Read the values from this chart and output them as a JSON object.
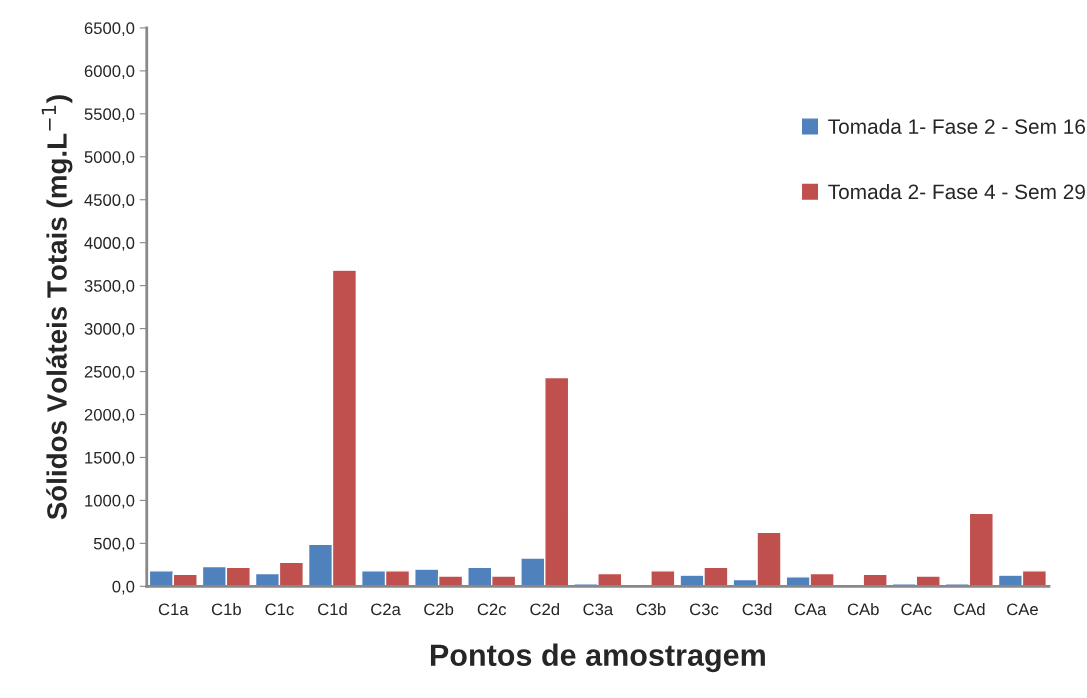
{
  "chart_data": {
    "type": "bar",
    "xlabel": "Pontos de amostragem",
    "ylabel": "Sólidos Voláteis Totais (mg.L$^{−1}$)",
    "categories": [
      "C1a",
      "C1b",
      "C1c",
      "C1d",
      "C2a",
      "C2b",
      "C2c",
      "C2d",
      "C3a",
      "C3b",
      "C3c",
      "C3d",
      "CAa",
      "CAb",
      "CAc",
      "CAd",
      "CAe"
    ],
    "series": [
      {
        "name": "Tomada 1- Fase 2 - Sem 16",
        "color": "#4f81bd",
        "values": [
          180,
          230,
          150,
          490,
          180,
          200,
          220,
          330,
          30,
          null,
          130,
          80,
          110,
          null,
          30,
          30,
          130
        ]
      },
      {
        "name": "Tomada 2- Fase 4 - Sem 29",
        "color": "#c0504d",
        "values": [
          140,
          220,
          280,
          3680,
          180,
          120,
          120,
          2430,
          150,
          180,
          220,
          630,
          150,
          140,
          120,
          850,
          180
        ]
      }
    ],
    "ylim": [
      0,
      6500
    ],
    "yticks": [
      {
        "value": 0,
        "label": "0,0"
      },
      {
        "value": 500,
        "label": "500,0"
      },
      {
        "value": 1000,
        "label": "1000,0"
      },
      {
        "value": 1500,
        "label": "1500,0"
      },
      {
        "value": 2000,
        "label": "2000,0"
      },
      {
        "value": 2500,
        "label": "2500,0"
      },
      {
        "value": 3000,
        "label": "3000,0"
      },
      {
        "value": 3500,
        "label": "3500,0"
      },
      {
        "value": 4000,
        "label": "4000,0"
      },
      {
        "value": 4500,
        "label": "4500,0"
      },
      {
        "value": 5000,
        "label": "5000,0"
      },
      {
        "value": 5500,
        "label": "5500,0"
      },
      {
        "value": 6000,
        "label": "6000,0"
      },
      {
        "value": 6500,
        "label": "6500,0"
      }
    ],
    "grid": false,
    "legend": "right"
  }
}
